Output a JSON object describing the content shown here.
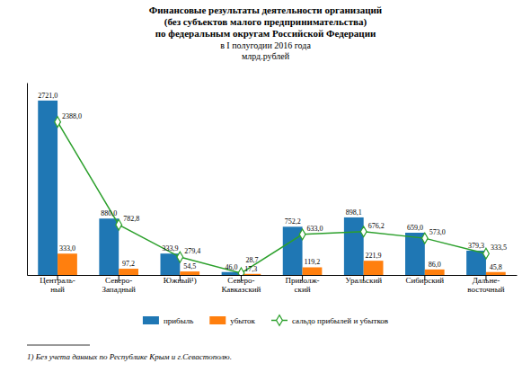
{
  "chart_data": {
    "type": "bar",
    "title": [
      "Финансовые результаты деятельности организаций",
      "(без субъектов малого предпринимательства)",
      "по федеральным округам Российской Федерации"
    ],
    "subtitle": [
      "в I полугодии 2016 года",
      "млрд.рублей"
    ],
    "annotations": [
      "1) Без учета данных по Республике Крым и г.Севастополю."
    ],
    "categories": [
      "Централь-\nный",
      "Северо-\nЗападный",
      "Южный¹)",
      "Северо-\nКавказский",
      "Приволж-\nский",
      "Уральский",
      "Сибирский",
      "Дальне-\nвосточный"
    ],
    "series": [
      {
        "name": "прибыль",
        "type": "bar",
        "values": [
          2721.0,
          880.0,
          333.9,
          46.0,
          752.2,
          898.1,
          659.0,
          379.3
        ],
        "value_labels": [
          "2721,0",
          "880,0",
          "333,9",
          "46,0",
          "752,2",
          "898,1",
          "659,0",
          "379,3"
        ]
      },
      {
        "name": "убыток",
        "type": "bar",
        "values": [
          333.0,
          97.2,
          54.5,
          17.3,
          119.2,
          221.9,
          86.0,
          45.8
        ],
        "value_labels": [
          "333,0",
          "97,2",
          "54,5",
          "17,3",
          "119,2",
          "221,9",
          "86,0",
          "45,8"
        ]
      },
      {
        "name": "сальдо прибылей и убытков",
        "type": "line",
        "marker": "diamond",
        "values": [
          2388.0,
          782.8,
          279.4,
          28.7,
          633.0,
          676.2,
          573.0,
          333.5
        ],
        "value_labels": [
          "2388,0",
          "782,8",
          "279,4",
          "28,7",
          "633,0",
          "676,2",
          "573,0",
          "333,5"
        ]
      }
    ],
    "ylim": [
      0,
      3000
    ],
    "tick_labels": "x",
    "grid": false,
    "legend": "bottom",
    "data_labels": true
  }
}
